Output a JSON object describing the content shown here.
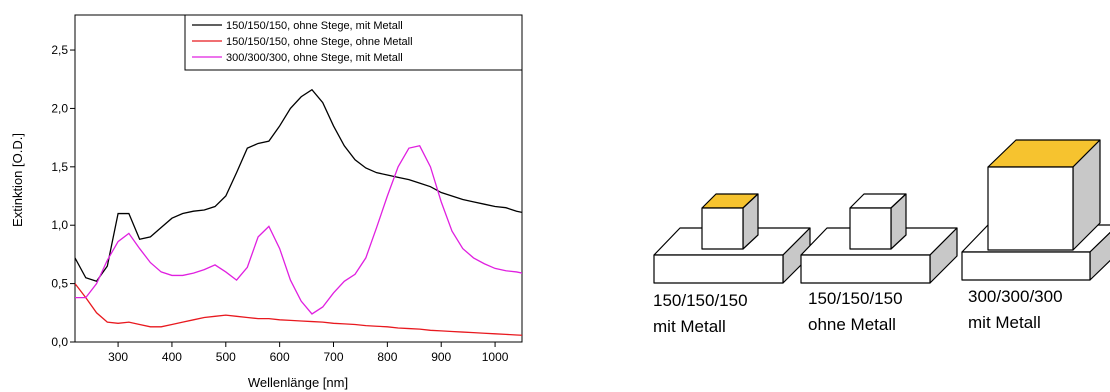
{
  "chart_data": {
    "type": "line",
    "xlabel": "Wellenlänge [nm]",
    "ylabel": "Extinktion [O.D.]",
    "x": [
      220,
      240,
      260,
      280,
      300,
      320,
      340,
      360,
      380,
      400,
      420,
      440,
      460,
      480,
      500,
      520,
      540,
      560,
      580,
      600,
      620,
      640,
      660,
      680,
      700,
      720,
      740,
      760,
      780,
      800,
      820,
      840,
      860,
      880,
      900,
      920,
      940,
      960,
      980,
      1000,
      1020,
      1040,
      1060
    ],
    "series": [
      {
        "name": "150/150/150, ohne Stege, mit Metall",
        "color": "#000000",
        "values": [
          0.72,
          0.55,
          0.52,
          0.65,
          1.1,
          1.1,
          0.88,
          0.9,
          0.98,
          1.06,
          1.1,
          1.12,
          1.13,
          1.16,
          1.25,
          1.45,
          1.66,
          1.7,
          1.72,
          1.85,
          2.0,
          2.1,
          2.16,
          2.05,
          1.85,
          1.68,
          1.56,
          1.49,
          1.45,
          1.43,
          1.41,
          1.39,
          1.36,
          1.33,
          1.28,
          1.25,
          1.22,
          1.2,
          1.18,
          1.16,
          1.15,
          1.12,
          1.1
        ]
      },
      {
        "name": "150/150/150, ohne Stege, ohne Metall",
        "color": "#e8191f",
        "values": [
          0.5,
          0.38,
          0.25,
          0.17,
          0.16,
          0.17,
          0.15,
          0.13,
          0.13,
          0.15,
          0.17,
          0.19,
          0.21,
          0.22,
          0.23,
          0.22,
          0.21,
          0.2,
          0.2,
          0.19,
          0.185,
          0.18,
          0.175,
          0.17,
          0.16,
          0.155,
          0.15,
          0.14,
          0.135,
          0.13,
          0.12,
          0.115,
          0.11,
          0.1,
          0.095,
          0.09,
          0.085,
          0.08,
          0.075,
          0.07,
          0.065,
          0.06,
          0.055
        ]
      },
      {
        "name": "300/300/300, ohne Stege, mit Metall",
        "color": "#e020e0",
        "values": [
          0.38,
          0.38,
          0.5,
          0.7,
          0.86,
          0.93,
          0.8,
          0.68,
          0.6,
          0.57,
          0.57,
          0.59,
          0.62,
          0.66,
          0.6,
          0.53,
          0.64,
          0.9,
          0.99,
          0.8,
          0.53,
          0.35,
          0.24,
          0.3,
          0.42,
          0.52,
          0.58,
          0.72,
          0.98,
          1.25,
          1.5,
          1.66,
          1.68,
          1.5,
          1.2,
          0.95,
          0.8,
          0.72,
          0.67,
          0.63,
          0.61,
          0.6,
          0.58
        ]
      }
    ],
    "xlim": [
      220,
      1050
    ],
    "xticks": [
      300,
      400,
      500,
      600,
      700,
      800,
      900,
      1000
    ],
    "ylim": [
      0,
      2.8
    ],
    "yticks": [
      {
        "value": 0,
        "label": "0,0"
      },
      {
        "value": 0.5,
        "label": "0,5"
      },
      {
        "value": 1.0,
        "label": "1,0"
      },
      {
        "value": 1.5,
        "label": "1,5"
      },
      {
        "value": 2.0,
        "label": "2,0"
      },
      {
        "value": 2.5,
        "label": "2,5"
      }
    ],
    "legend": "upper right",
    "grid": false
  },
  "diagram": {
    "items": [
      {
        "lines": [
          "150/150/150",
          "mit Metall"
        ]
      },
      {
        "lines": [
          "150/150/150",
          "ohne Metall"
        ]
      },
      {
        "lines": [
          "300/300/300",
          "mit Metall"
        ]
      }
    ]
  }
}
